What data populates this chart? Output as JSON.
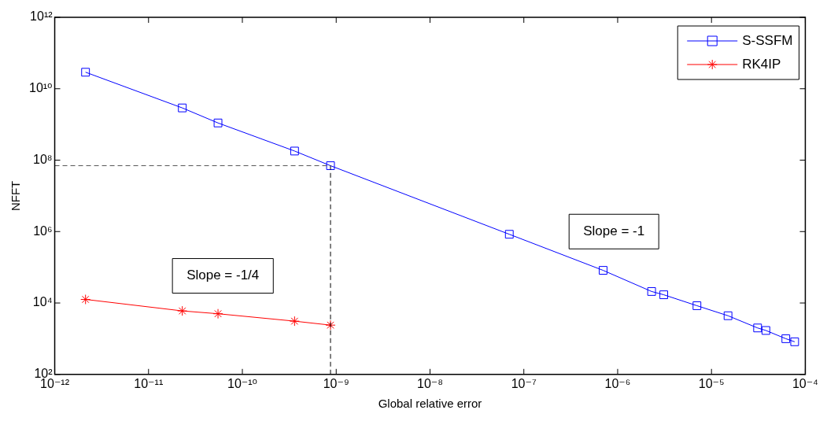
{
  "chart_data": {
    "type": "line",
    "xlabel": "Global relative error",
    "ylabel": "NFFT",
    "log": "xy",
    "xlim": [
      1e-12,
      0.0001
    ],
    "ylim": [
      100,
      1000000000000.0
    ],
    "xticks": [
      {
        "value": 1e-12,
        "label": "10⁻¹²"
      },
      {
        "value": 1e-11,
        "label": "10⁻¹¹"
      },
      {
        "value": 1e-10,
        "label": "10⁻¹⁰"
      },
      {
        "value": 1e-09,
        "label": "10⁻⁹"
      },
      {
        "value": 1e-08,
        "label": "10⁻⁸"
      },
      {
        "value": 1e-07,
        "label": "10⁻⁷"
      },
      {
        "value": 1e-06,
        "label": "10⁻⁶"
      },
      {
        "value": 1e-05,
        "label": "10⁻⁵"
      },
      {
        "value": 0.0001,
        "label": "10⁻⁴"
      }
    ],
    "yticks": [
      {
        "value": 100,
        "label": "10²"
      },
      {
        "value": 10000,
        "label": "10⁴"
      },
      {
        "value": 1000000,
        "label": "10⁶"
      },
      {
        "value": 100000000,
        "label": "10⁸"
      },
      {
        "value": 10000000000,
        "label": "10¹⁰"
      },
      {
        "value": 1000000000000,
        "label": "10¹²"
      }
    ],
    "grid": false,
    "legend": "top right",
    "series": [
      {
        "name": "S-SSFM",
        "color": "#0000ff",
        "marker": "square",
        "x": [
          2.13e-12,
          2.29e-11,
          5.5e-11,
          3.6e-10,
          8.7e-10,
          7e-08,
          7e-07,
          2.3e-06,
          3.1e-06,
          7e-06,
          1.5e-05,
          3.1e-05,
          3.8e-05,
          6.2e-05,
          7.7e-05
        ],
        "values": [
          29000000000.0,
          2900000000.0,
          1100000000.0,
          180000000.0,
          70000000.0,
          840000.0,
          82000.0,
          21000.0,
          17000.0,
          8400.0,
          4400.0,
          2000.0,
          1700.0,
          1000.0,
          820.0
        ]
      },
      {
        "name": "RK4IP",
        "color": "#ff0000",
        "marker": "cross",
        "x": [
          2.13e-12,
          2.29e-11,
          5.5e-11,
          3.6e-10,
          8.7e-10
        ],
        "values": [
          12600.0,
          6000.0,
          5000.0,
          3100.0,
          2400.0
        ]
      }
    ],
    "ref_lines": [
      {
        "axis": "x",
        "value": 8.7e-10,
        "color": "#000000",
        "line_style": "dashed"
      },
      {
        "axis": "y",
        "value": 70000000.0,
        "color": "#555555",
        "line_style": "dashed"
      }
    ],
    "annotations": [
      "Slope = -1/4",
      "Slope = -1"
    ]
  }
}
